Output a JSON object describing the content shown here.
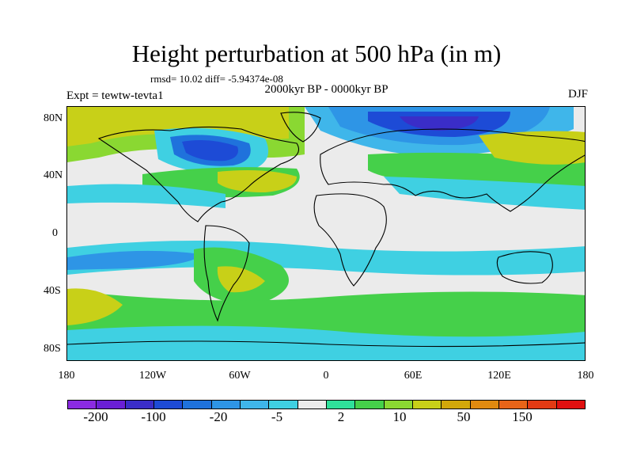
{
  "title": "Height perturbation at 500 hPa (in m)",
  "stats": "rmsd= 10.02 diff= -5.94374e-08",
  "period": "2000kyr BP - 0000kyr BP",
  "experiment": "Expt = tewtw-tevta1",
  "season": "DJF",
  "lat_labels": [
    "80N",
    "40N",
    "0",
    "40S",
    "80S"
  ],
  "lon_labels": [
    "180",
    "120W",
    "60W",
    "0",
    "60E",
    "120E",
    "180"
  ],
  "colorbar": {
    "colors": [
      "#8b2be2",
      "#6a1fd6",
      "#3a2dc8",
      "#1d4bd6",
      "#1f72dc",
      "#2e95e6",
      "#3fb6ea",
      "#3fd0e2",
      "#ebebeb",
      "#2fe09a",
      "#45d04a",
      "#8ad832",
      "#c8d018",
      "#d2a80a",
      "#e08a10",
      "#e86418",
      "#e23a14",
      "#e01010"
    ],
    "labels": [
      "-200",
      "-100",
      "-20",
      "-5",
      "2",
      "10",
      "50",
      "150"
    ]
  }
}
